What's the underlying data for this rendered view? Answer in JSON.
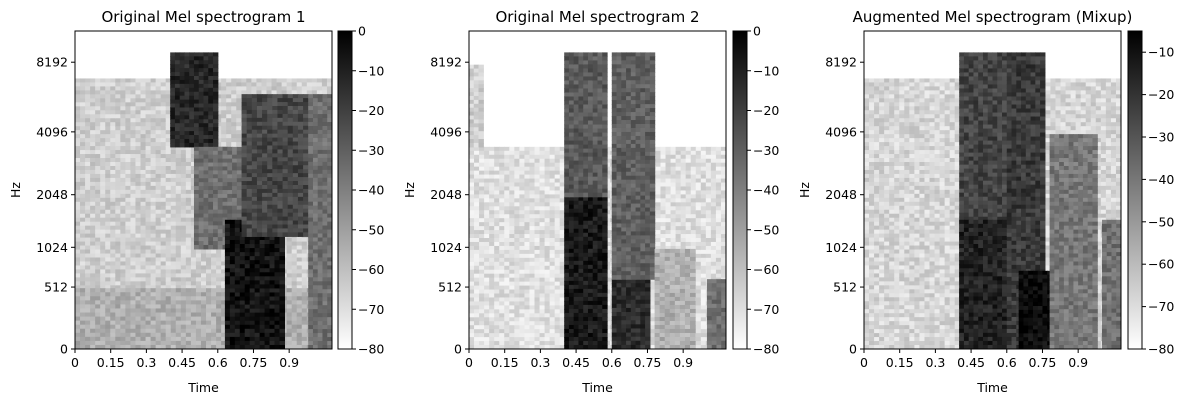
{
  "figure_colors": {
    "background": "#ffffff",
    "colormap_low": "#ffffff",
    "colormap_high": "#000000",
    "axes_edge": "#000000"
  },
  "chart_data": [
    {
      "type": "heatmap",
      "title": "Original Mel spectrogram 1",
      "xlabel": "Time",
      "ylabel": "Hz",
      "x_ticks": [
        "0",
        "0.15",
        "0.3",
        "0.45",
        "0.6",
        "0.75",
        "0.9"
      ],
      "y_ticks": [
        "0",
        "512",
        "1024",
        "2048",
        "4096",
        "8192"
      ],
      "colorbar_ticks": [
        "0",
        "−10",
        "−20",
        "−30",
        "−40",
        "−50",
        "−60",
        "−70",
        "−80"
      ],
      "colorbar_range_db": [
        -80,
        0
      ],
      "colormap": "gray_r",
      "xlim": [
        0,
        1.08
      ],
      "y_scale": "mel",
      "regions": [
        {
          "t": [
            0.0,
            1.08
          ],
          "f": [
            0,
            7000
          ],
          "level_db": -65
        },
        {
          "t": [
            0.0,
            1.08
          ],
          "f": [
            0,
            500
          ],
          "level_db": -55
        },
        {
          "t": [
            0.4,
            0.6
          ],
          "f": [
            3500,
            9000
          ],
          "level_db": -12
        },
        {
          "t": [
            0.5,
            0.7
          ],
          "f": [
            1000,
            3500
          ],
          "level_db": -35
        },
        {
          "t": [
            0.63,
            0.88
          ],
          "f": [
            0,
            1500
          ],
          "level_db": -6
        },
        {
          "t": [
            0.7,
            0.98
          ],
          "f": [
            1200,
            6000
          ],
          "level_db": -22
        },
        {
          "t": [
            0.98,
            1.08
          ],
          "f": [
            0,
            6000
          ],
          "level_db": -35
        }
      ]
    },
    {
      "type": "heatmap",
      "title": "Original Mel spectrogram 2",
      "xlabel": "Time",
      "ylabel": "Hz",
      "x_ticks": [
        "0",
        "0.15",
        "0.3",
        "0.45",
        "0.6",
        "0.75",
        "0.9"
      ],
      "y_ticks": [
        "0",
        "512",
        "1024",
        "2048",
        "4096",
        "8192"
      ],
      "colorbar_ticks": [
        "0",
        "−10",
        "−20",
        "−30",
        "−40",
        "−50",
        "−60",
        "−70",
        "−80"
      ],
      "colorbar_range_db": [
        -80,
        0
      ],
      "colormap": "gray_r",
      "xlim": [
        0,
        1.08
      ],
      "y_scale": "mel",
      "regions": [
        {
          "t": [
            0.0,
            1.08
          ],
          "f": [
            0,
            3500
          ],
          "level_db": -70
        },
        {
          "t": [
            0.0,
            0.06
          ],
          "f": [
            3500,
            8000
          ],
          "level_db": -65
        },
        {
          "t": [
            0.4,
            0.58
          ],
          "f": [
            0,
            2000
          ],
          "level_db": -8
        },
        {
          "t": [
            0.4,
            0.58
          ],
          "f": [
            2000,
            9000
          ],
          "level_db": -28
        },
        {
          "t": [
            0.6,
            0.76
          ],
          "f": [
            0,
            600
          ],
          "level_db": -14
        },
        {
          "t": [
            0.6,
            0.78
          ],
          "f": [
            600,
            9000
          ],
          "level_db": -30
        },
        {
          "t": [
            0.78,
            0.95
          ],
          "f": [
            0,
            1000
          ],
          "level_db": -55
        },
        {
          "t": [
            1.0,
            1.08
          ],
          "f": [
            0,
            600
          ],
          "level_db": -35
        }
      ]
    },
    {
      "type": "heatmap",
      "title": "Augmented Mel spectrogram (Mixup)",
      "xlabel": "Time",
      "ylabel": "Hz",
      "x_ticks": [
        "0",
        "0.15",
        "0.3",
        "0.45",
        "0.6",
        "0.75",
        "0.9"
      ],
      "y_ticks": [
        "0",
        "512",
        "1024",
        "2048",
        "4096",
        "8192"
      ],
      "colorbar_ticks": [
        "−10",
        "−20",
        "−30",
        "−40",
        "−50",
        "−60",
        "−70",
        "−80"
      ],
      "colorbar_range_db": [
        -80,
        -5
      ],
      "colormap": "gray_r",
      "xlim": [
        0,
        1.08
      ],
      "y_scale": "mel",
      "regions": [
        {
          "t": [
            0.0,
            1.08
          ],
          "f": [
            0,
            7000
          ],
          "level_db": -68
        },
        {
          "t": [
            0.4,
            0.6
          ],
          "f": [
            0,
            9000
          ],
          "level_db": -25
        },
        {
          "t": [
            0.4,
            0.6
          ],
          "f": [
            0,
            1500
          ],
          "level_db": -15
        },
        {
          "t": [
            0.6,
            0.76
          ],
          "f": [
            0,
            9000
          ],
          "level_db": -22
        },
        {
          "t": [
            0.65,
            0.85
          ],
          "f": [
            0,
            700
          ],
          "level_db": -8
        },
        {
          "t": [
            0.78,
            0.98
          ],
          "f": [
            0,
            4000
          ],
          "level_db": -40
        },
        {
          "t": [
            1.0,
            1.08
          ],
          "f": [
            0,
            1500
          ],
          "level_db": -38
        }
      ]
    }
  ]
}
